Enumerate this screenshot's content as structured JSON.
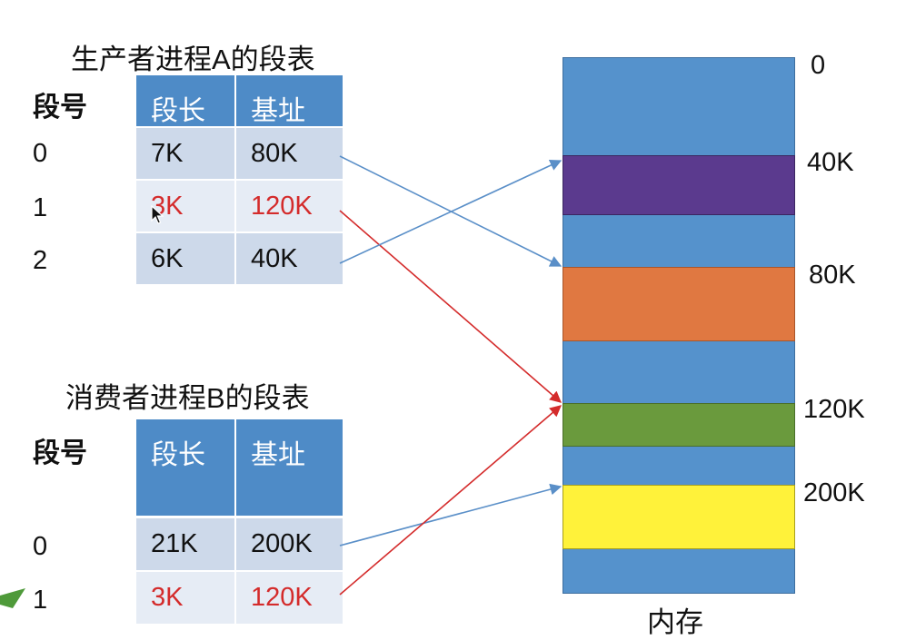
{
  "tableA": {
    "title": "生产者进程A的段表",
    "seg_header": "段号",
    "col_len": "段长",
    "col_base": "基址",
    "rows": [
      {
        "seg": "0",
        "len": "7K",
        "base": "80K",
        "highlight": false
      },
      {
        "seg": "1",
        "len": "3K",
        "base": "120K",
        "highlight": true
      },
      {
        "seg": "2",
        "len": "6K",
        "base": "40K",
        "highlight": false
      }
    ]
  },
  "tableB": {
    "title": "消费者进程B的段表",
    "seg_header": "段号",
    "col_len": "段长",
    "col_base": "基址",
    "rows": [
      {
        "seg": "0",
        "len": "21K",
        "base": "200K",
        "highlight": false
      },
      {
        "seg": "1",
        "len": "3K",
        "base": "120K",
        "highlight": true
      }
    ]
  },
  "memory": {
    "label": "内存",
    "addresses": [
      "0",
      "40K",
      "80K",
      "120K",
      "200K"
    ],
    "segments": [
      {
        "name": "segment-40K",
        "color": "#5b3a8e"
      },
      {
        "name": "segment-80K",
        "color": "#e07841"
      },
      {
        "name": "segment-120K",
        "color": "#6a9a3d"
      },
      {
        "name": "segment-200K",
        "color": "#fff23a"
      }
    ],
    "base_color": "#5592cc"
  },
  "colors": {
    "table_header": "#4e8bc7",
    "cell_dark": "#cdd9ea",
    "cell_light": "#e6ecf5",
    "highlight_text": "#d42b2b",
    "arrow_blue": "#5a8fc8",
    "arrow_red": "#d42b2b"
  }
}
